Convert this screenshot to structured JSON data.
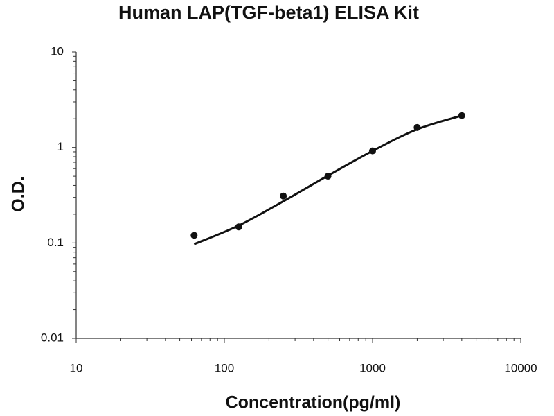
{
  "chart_data": {
    "type": "scatter",
    "title": "Human LAP(TGF-beta1) ELISA Kit",
    "x_label": "Concentration(pg/ml)",
    "y_label": "O.D.",
    "x": [
      62.5,
      125,
      250,
      500,
      1000,
      2000,
      4000
    ],
    "series": [
      {
        "color": "#111111",
        "values": [
          0.12,
          0.147,
          0.31,
          0.5,
          0.92,
          1.62,
          2.16
        ]
      }
    ],
    "fit": {
      "color": "#111111",
      "x": [
        62.5,
        125,
        250,
        500,
        1000,
        2000,
        4000
      ],
      "values": [
        0.097,
        0.152,
        0.273,
        0.507,
        0.92,
        1.55,
        2.16
      ]
    },
    "xlim": [
      10,
      10000
    ],
    "ylim": [
      0.01,
      10
    ],
    "xticks": [
      10,
      100,
      1000,
      10000
    ],
    "yticks": [
      0.01,
      0.1,
      1,
      10
    ],
    "x_log": true,
    "y_log": true,
    "minor_ticks": true
  }
}
